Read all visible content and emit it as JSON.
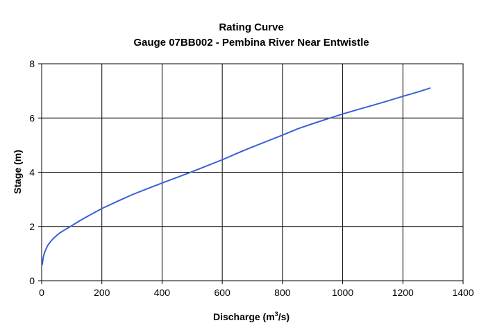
{
  "chart_data": {
    "type": "line",
    "title": "Rating Curve",
    "subtitle": "Gauge 07BB002 - Pembina River Near Entwistle",
    "xlabel": "Discharge (m³/s)",
    "xlabel_parts": {
      "prefix": "Discharge (m",
      "superscript": "3",
      "suffix": "/s)"
    },
    "ylabel": "Stage (m)",
    "xlim": [
      0,
      1400
    ],
    "ylim": [
      0,
      8
    ],
    "x_ticks": [
      0,
      200,
      400,
      600,
      800,
      1000,
      1200,
      1400
    ],
    "y_ticks": [
      0,
      2,
      4,
      6,
      8
    ],
    "grid": true,
    "legend": "none",
    "series": [
      {
        "color": "#3a5fd9",
        "x": [
          2,
          5,
          10,
          20,
          30,
          40,
          50,
          60,
          80,
          100,
          125,
          150,
          175,
          200,
          250,
          300,
          350,
          400,
          450,
          500,
          550,
          600,
          650,
          700,
          750,
          800,
          850,
          900,
          950,
          1000,
          1050,
          1100,
          1150,
          1200,
          1250,
          1290
        ],
        "y": [
          0.6,
          0.85,
          1.05,
          1.3,
          1.45,
          1.57,
          1.67,
          1.76,
          1.9,
          2.03,
          2.2,
          2.36,
          2.51,
          2.66,
          2.92,
          3.17,
          3.39,
          3.6,
          3.81,
          4.02,
          4.24,
          4.46,
          4.7,
          4.93,
          5.15,
          5.37,
          5.6,
          5.79,
          5.97,
          6.15,
          6.31,
          6.47,
          6.63,
          6.8,
          6.96,
          7.1
        ]
      }
    ]
  }
}
